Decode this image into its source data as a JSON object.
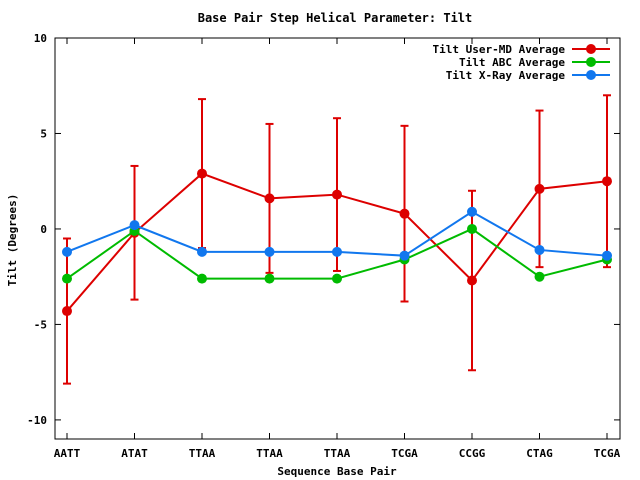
{
  "chart_data": {
    "type": "line",
    "title": "Base Pair Step Helical Parameter: Tilt",
    "xlabel": "Sequence Base Pair",
    "ylabel": "Tilt (Degrees)",
    "categories": [
      "AATT",
      "ATAT",
      "TTAA",
      "TTAA",
      "TTAA",
      "TCGA",
      "CCGG",
      "CTAG",
      "TCGA"
    ],
    "ylim": [
      -11,
      10
    ],
    "yticks": [
      10,
      5,
      0,
      -5,
      -10
    ],
    "ytick_labels": [
      "10",
      "5",
      "0",
      "-5",
      "-10"
    ],
    "grid": false,
    "legend_position": "top-right",
    "series": [
      {
        "name": "Tilt User-MD Average",
        "color": "#dd0000",
        "values": [
          -4.3,
          -0.2,
          2.9,
          1.6,
          1.8,
          0.8,
          -2.7,
          2.1,
          2.5
        ],
        "error": [
          3.8,
          3.5,
          3.9,
          3.9,
          4.0,
          4.6,
          4.7,
          4.1,
          4.5
        ]
      },
      {
        "name": "Tilt ABC Average",
        "color": "#00bb00",
        "values": [
          -2.6,
          -0.1,
          -2.6,
          -2.6,
          -2.6,
          -1.6,
          0.0,
          -2.5,
          -1.6
        ]
      },
      {
        "name": "Tilt X-Ray Average",
        "color": "#1177ee",
        "values": [
          -1.2,
          0.2,
          -1.2,
          -1.2,
          -1.2,
          -1.4,
          0.9,
          -1.1,
          -1.4
        ]
      }
    ]
  }
}
